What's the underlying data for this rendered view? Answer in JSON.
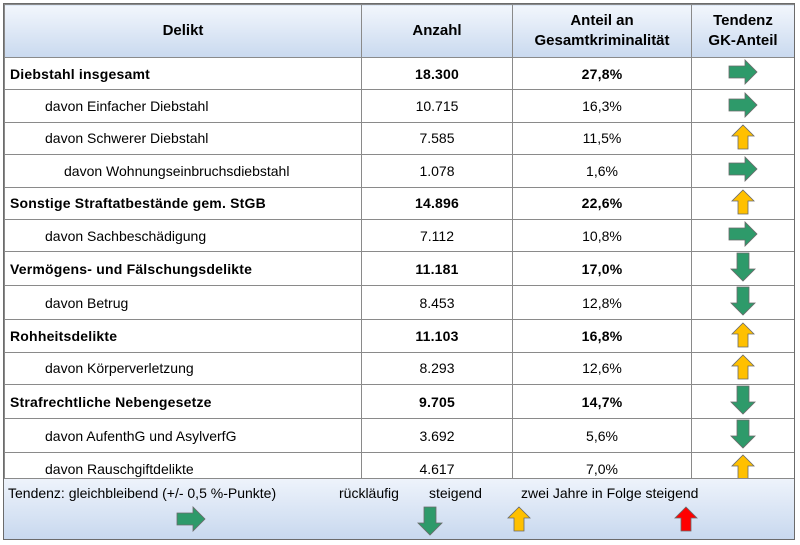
{
  "header": {
    "delikt": "Delikt",
    "anzahl": "Anzahl",
    "anteil_line1": "Anteil an",
    "anteil_line2": "Gesamtkriminalität",
    "tendenz_line1": "Tendenz",
    "tendenz_line2": "GK-Anteil"
  },
  "rows": [
    {
      "delikt": "Diebstahl insgesamt",
      "anzahl": "18.300",
      "anteil": "27,8%",
      "tendenz": "gleichbleibend",
      "main": true,
      "indent": 0
    },
    {
      "delikt": "davon Einfacher Diebstahl",
      "anzahl": "10.715",
      "anteil": "16,3%",
      "tendenz": "gleichbleibend",
      "main": false,
      "indent": 1
    },
    {
      "delikt": "davon Schwerer Diebstahl",
      "anzahl": "7.585",
      "anteil": "11,5%",
      "tendenz": "steigend",
      "main": false,
      "indent": 1
    },
    {
      "delikt": "davon Wohnungseinbruchsdiebstahl",
      "anzahl": "1.078",
      "anteil": "1,6%",
      "tendenz": "gleichbleibend",
      "main": false,
      "indent": 2
    },
    {
      "delikt": "Sonstige Straftatbestände gem. StGB",
      "anzahl": "14.896",
      "anteil": "22,6%",
      "tendenz": "steigend",
      "main": true,
      "indent": 0
    },
    {
      "delikt": "davon Sachbeschädigung",
      "anzahl": "7.112",
      "anteil": "10,8%",
      "tendenz": "gleichbleibend",
      "main": false,
      "indent": 1
    },
    {
      "delikt": "Vermögens- und Fälschungsdelikte",
      "anzahl": "11.181",
      "anteil": "17,0%",
      "tendenz": "rückläufig",
      "main": true,
      "indent": 0
    },
    {
      "delikt": "davon Betrug",
      "anzahl": "8.453",
      "anteil": "12,8%",
      "tendenz": "rückläufig",
      "main": false,
      "indent": 1
    },
    {
      "delikt": "Rohheitsdelikte",
      "anzahl": "11.103",
      "anteil": "16,8%",
      "tendenz": "steigend",
      "main": true,
      "indent": 0
    },
    {
      "delikt": "davon Körperverletzung",
      "anzahl": "8.293",
      "anteil": "12,6%",
      "tendenz": "steigend",
      "main": false,
      "indent": 1
    },
    {
      "delikt": "Strafrechtliche Nebengesetze",
      "anzahl": "9.705",
      "anteil": "14,7%",
      "tendenz": "rückläufig",
      "main": true,
      "indent": 0
    },
    {
      "delikt": "davon AufenthG und AsylverfG",
      "anzahl": "3.692",
      "anteil": "5,6%",
      "tendenz": "rückläufig",
      "main": false,
      "indent": 1
    },
    {
      "delikt": "davon Rauschgiftdelikte",
      "anzahl": "4.617",
      "anteil": "7,0%",
      "tendenz": "steigend",
      "main": false,
      "indent": 1
    }
  ],
  "legend": {
    "title": "Tendenz: gleichbleibend (+/- 0,5 %-Punkte)",
    "falling": "rückläufig",
    "rising": "steigend",
    "rising_twice": "zwei Jahre in Folge steigend"
  },
  "colors": {
    "gleichbleibend": "#2e9a6a",
    "rückläufig": "#2e9a6a",
    "steigend": "#ffc000",
    "zwei Jahre in Folge steigend": "#ff0000"
  },
  "icons": {
    "gleichbleibend": "arrow-right-icon",
    "rückläufig": "arrow-down-icon",
    "steigend": "arrow-up-icon",
    "zwei Jahre in Folge steigend": "arrow-up-red-icon"
  }
}
